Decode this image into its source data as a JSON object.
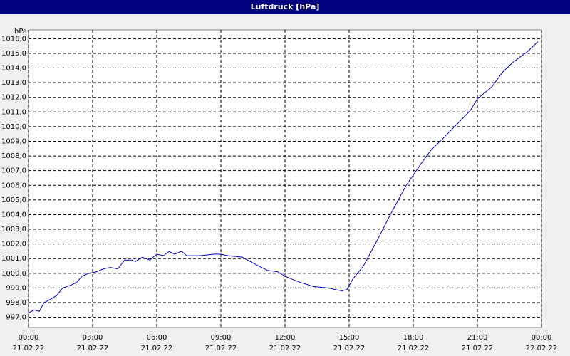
{
  "chart_data": {
    "type": "line",
    "title": "Luftdruck [hPa]",
    "y_label": "hPa",
    "series": [
      {
        "name": "Luftdruck",
        "color": "#0000cc",
        "x": [
          0,
          0.27,
          0.5,
          0.73,
          1.0,
          1.33,
          1.6,
          2.0,
          2.27,
          2.5,
          2.83,
          3.17,
          3.5,
          3.83,
          4.17,
          4.5,
          4.83,
          5.0,
          5.33,
          5.67,
          6.0,
          6.33,
          6.57,
          6.83,
          7.17,
          7.4,
          8.0,
          8.67,
          9.0,
          9.33,
          10.0,
          10.5,
          11.17,
          11.67,
          12.0,
          12.33,
          12.67,
          13.33,
          14.0,
          14.33,
          14.67,
          14.9,
          15.17,
          15.67,
          16.33,
          17.0,
          17.67,
          18.33,
          18.83,
          19.33,
          20.0,
          20.67,
          21.0,
          21.67,
          22.17,
          22.67,
          23.33,
          23.83
        ],
        "values": [
          997.3,
          997.5,
          997.4,
          998.0,
          998.2,
          998.5,
          999.0,
          999.2,
          999.4,
          999.8,
          1000.0,
          1000.1,
          1000.3,
          1000.4,
          1000.3,
          1000.9,
          1000.9,
          1000.8,
          1001.1,
          1000.9,
          1001.3,
          1001.2,
          1001.5,
          1001.3,
          1001.5,
          1001.2,
          1001.2,
          1001.3,
          1001.3,
          1001.2,
          1001.1,
          1000.7,
          1000.2,
          1000.1,
          999.8,
          999.6,
          999.4,
          999.1,
          999.0,
          998.9,
          998.8,
          998.9,
          999.6,
          1000.5,
          1002.3,
          1004.2,
          1006.0,
          1007.4,
          1008.4,
          1009.1,
          1010.1,
          1011.1,
          1011.9,
          1012.7,
          1013.7,
          1014.4,
          1015.1,
          1015.8
        ]
      }
    ],
    "xlim": [
      0,
      24
    ],
    "xticks": [
      {
        "value": 0,
        "label": "00:00",
        "date": "21.02.22"
      },
      {
        "value": 3,
        "label": "03:00",
        "date": "21.02.22"
      },
      {
        "value": 6,
        "label": "06:00",
        "date": "21.02.22"
      },
      {
        "value": 9,
        "label": "09:00",
        "date": "21.02.22"
      },
      {
        "value": 12,
        "label": "12:00",
        "date": "21.02.22"
      },
      {
        "value": 15,
        "label": "15:00",
        "date": "21.02.22"
      },
      {
        "value": 18,
        "label": "18:00",
        "date": "21.02.22"
      },
      {
        "value": 21,
        "label": "21:00",
        "date": "21.02.22"
      },
      {
        "value": 24,
        "label": "00:00",
        "date": "22.02.22"
      }
    ],
    "ylim": [
      996.3,
      1016.6
    ],
    "yticks": [
      {
        "value": 997,
        "label": "997,0"
      },
      {
        "value": 998,
        "label": "998,0"
      },
      {
        "value": 999,
        "label": "999,0"
      },
      {
        "value": 1000,
        "label": "1000,0"
      },
      {
        "value": 1001,
        "label": "1001,0"
      },
      {
        "value": 1002,
        "label": "1002,0"
      },
      {
        "value": 1003,
        "label": "1003,0"
      },
      {
        "value": 1004,
        "label": "1004,0"
      },
      {
        "value": 1005,
        "label": "1005,0"
      },
      {
        "value": 1006,
        "label": "1006,0"
      },
      {
        "value": 1007,
        "label": "1007,0"
      },
      {
        "value": 1008,
        "label": "1008,0"
      },
      {
        "value": 1009,
        "label": "1009,0"
      },
      {
        "value": 1010,
        "label": "1010,0"
      },
      {
        "value": 1011,
        "label": "1011,0"
      },
      {
        "value": 1012,
        "label": "1012,0"
      },
      {
        "value": 1013,
        "label": "1013,0"
      },
      {
        "value": 1014,
        "label": "1014,0"
      },
      {
        "value": 1015,
        "label": "1015,0"
      },
      {
        "value": 1016,
        "label": "1016,0"
      }
    ],
    "grid": true
  }
}
